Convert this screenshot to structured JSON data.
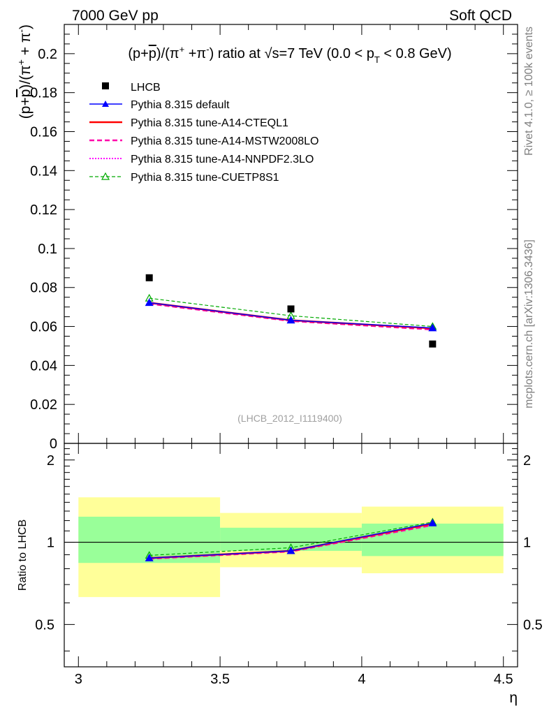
{
  "header": {
    "left_label": "7000 GeV pp",
    "right_label": "Soft QCD"
  },
  "side_labels": {
    "rivet": "Rivet 4.1.0, ≥ 100k events",
    "source": "mcplots.cern.ch [arXiv:1306.3436]"
  },
  "chart_data": [
    {
      "type": "scatter",
      "panel": "main",
      "title": "(p+p̅)/(π⁺ + π⁻) ratio at √s=7 TeV (0.0 < p_T < 0.8 GeV)",
      "title_parts": {
        "pre": "(p+",
        "pbar": "p",
        "mid": ")/(π",
        "plus": "+",
        "mid2": " +π",
        "minus": "-",
        "post": ") ratio at ",
        "sqrt": "√",
        "s_part": "s=7 TeV (0.0 < p",
        "sub": "T",
        "end": " < 0.8 GeV)"
      },
      "ylabel": "(p+p̅)/(π⁺ + π⁻)",
      "ylabel_parts": {
        "pre": "(p+",
        "pbar": "p",
        "mid": ")/(π",
        "plus": "+",
        "mid2": " + π",
        "minus": "-",
        "post": ")"
      },
      "xlabel": "η",
      "xlim": [
        2.95,
        4.55
      ],
      "ylim": [
        0,
        0.215
      ],
      "yticks": [
        "0",
        "0.02",
        "0.04",
        "0.06",
        "0.08",
        "0.1",
        "0.12",
        "0.14",
        "0.16",
        "0.18",
        "0.2"
      ],
      "ytick_values": [
        0,
        0.02,
        0.04,
        0.06,
        0.08,
        0.1,
        0.12,
        0.14,
        0.16,
        0.18,
        0.2
      ],
      "x": [
        3.25,
        3.75,
        4.25
      ],
      "analysis_tag": "(LHCB_2012_I1119400)",
      "series": [
        {
          "name": "LHCB",
          "values": [
            0.085,
            0.069,
            0.051
          ],
          "color": "#000000",
          "style": "marker-square"
        },
        {
          "name": "Pythia 8.315 default",
          "values": [
            0.0722,
            0.0632,
            0.0592
          ],
          "color": "#0000ff",
          "style": "solid-triangle"
        },
        {
          "name": "Pythia 8.315 tune-A14-CTEQL1",
          "values": [
            0.0722,
            0.0632,
            0.059
          ],
          "color": "#ff0000",
          "style": "solid"
        },
        {
          "name": "Pythia 8.315 tune-A14-MSTW2008LO",
          "values": [
            0.0717,
            0.0628,
            0.0584
          ],
          "color": "#ff00aa",
          "style": "dashed"
        },
        {
          "name": "Pythia 8.315 tune-A14-NNPDF2.3LO",
          "values": [
            0.072,
            0.063,
            0.059
          ],
          "color": "#ff00ff",
          "style": "dotted"
        },
        {
          "name": "Pythia 8.315 tune-CUETP8S1",
          "values": [
            0.0745,
            0.0655,
            0.06
          ],
          "color": "#00aa00",
          "style": "dashed-open-triangle"
        }
      ]
    },
    {
      "type": "scatter",
      "panel": "ratio",
      "ylabel": "Ratio to LHCB",
      "xlabel": "η",
      "xlim": [
        2.95,
        4.55
      ],
      "ylim": [
        0.35,
        2.3
      ],
      "yticks": [
        "0.5",
        "1",
        "2"
      ],
      "ytick_values": [
        0.5,
        1,
        2
      ],
      "xticks": [
        "3",
        "3.5",
        "4",
        "4.5"
      ],
      "xtick_values": [
        3,
        3.5,
        4,
        4.5
      ],
      "x": [
        3.25,
        3.75,
        4.25
      ],
      "bands": [
        {
          "x_lo": 3.0,
          "x_hi": 3.5,
          "green_lo": 0.84,
          "green_hi": 1.24,
          "yellow_lo": 0.63,
          "yellow_hi": 1.46
        },
        {
          "x_lo": 3.5,
          "x_hi": 4.0,
          "green_lo": 0.93,
          "green_hi": 1.13,
          "yellow_lo": 0.81,
          "yellow_hi": 1.28
        },
        {
          "x_lo": 4.0,
          "x_hi": 4.5,
          "green_lo": 0.89,
          "green_hi": 1.17,
          "yellow_lo": 0.77,
          "yellow_hi": 1.35
        }
      ],
      "series": [
        {
          "name": "Pythia 8.315 default",
          "values": [
            0.875,
            0.93,
            1.175
          ],
          "color": "#0000ff",
          "style": "solid-triangle"
        },
        {
          "name": "Pythia 8.315 tune-A14-CTEQL1",
          "values": [
            0.875,
            0.93,
            1.17
          ],
          "color": "#ff0000",
          "style": "solid"
        },
        {
          "name": "Pythia 8.315 tune-A14-MSTW2008LO",
          "values": [
            0.87,
            0.925,
            1.155
          ],
          "color": "#ff00aa",
          "style": "dashed"
        },
        {
          "name": "Pythia 8.315 tune-A14-NNPDF2.3LO",
          "values": [
            0.872,
            0.928,
            1.165
          ],
          "color": "#ff00ff",
          "style": "dotted"
        },
        {
          "name": "Pythia 8.315 tune-CUETP8S1",
          "values": [
            0.895,
            0.955,
            1.185
          ],
          "color": "#00aa00",
          "style": "dashed-open-triangle"
        }
      ]
    }
  ]
}
